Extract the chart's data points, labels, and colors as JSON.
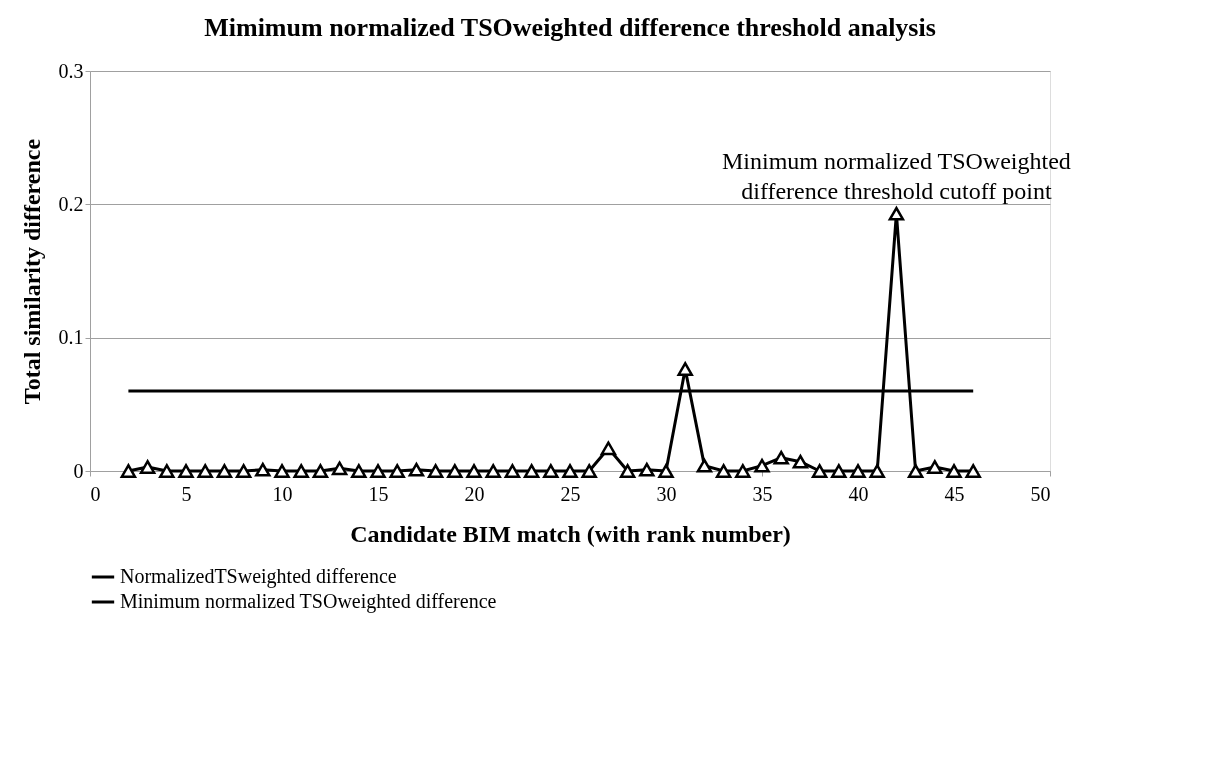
{
  "chart_data": {
    "type": "line",
    "title": "Mimimum normalized TSOweighted difference threshold analysis",
    "xlabel": "Candidate BIM match (with rank number)",
    "ylabel": "Total similarity difference",
    "xlim": [
      0,
      50
    ],
    "xticks": [
      0,
      5,
      10,
      15,
      20,
      25,
      30,
      35,
      40,
      45,
      50
    ],
    "ylim": [
      0,
      0.3
    ],
    "yticks": [
      {
        "value": 0,
        "label": "0"
      },
      0.1,
      0.2,
      0.3
    ],
    "grid": "y",
    "legend": "bottom",
    "series": [
      {
        "name": "NormalizedTSweighted difference",
        "color": "#000000",
        "marker": "triangle",
        "x": [
          2,
          3,
          4,
          5,
          6,
          7,
          8,
          9,
          10,
          11,
          12,
          13,
          14,
          15,
          16,
          17,
          18,
          19,
          20,
          21,
          22,
          23,
          24,
          25,
          26,
          27,
          28,
          29,
          30,
          31,
          32,
          33,
          34,
          35,
          36,
          37,
          38,
          39,
          40,
          41,
          42,
          43,
          44,
          45,
          46
        ],
        "values": [
          0,
          0.003,
          0,
          0,
          0,
          0,
          0,
          0.001,
          0,
          0,
          0,
          0.002,
          0,
          0,
          0,
          0.001,
          0,
          0,
          0,
          0,
          0,
          0,
          0,
          0,
          0,
          0.017,
          0,
          0.001,
          0,
          0.0765,
          0.004,
          0,
          0,
          0.004,
          0.01,
          0.007,
          0,
          0,
          0,
          0,
          0.193,
          0,
          0.003,
          0,
          0
        ]
      },
      {
        "name": "Minimum normalized TSOweighted difference",
        "color": "#000000",
        "marker": "none",
        "x": [
          2,
          46
        ],
        "values": [
          0.06,
          0.06
        ]
      }
    ],
    "annotations": [
      {
        "text": "Minimum normalized TSOweighted\ndifference threshold cutoff point",
        "x": 42,
        "y": 0.193
      }
    ]
  }
}
